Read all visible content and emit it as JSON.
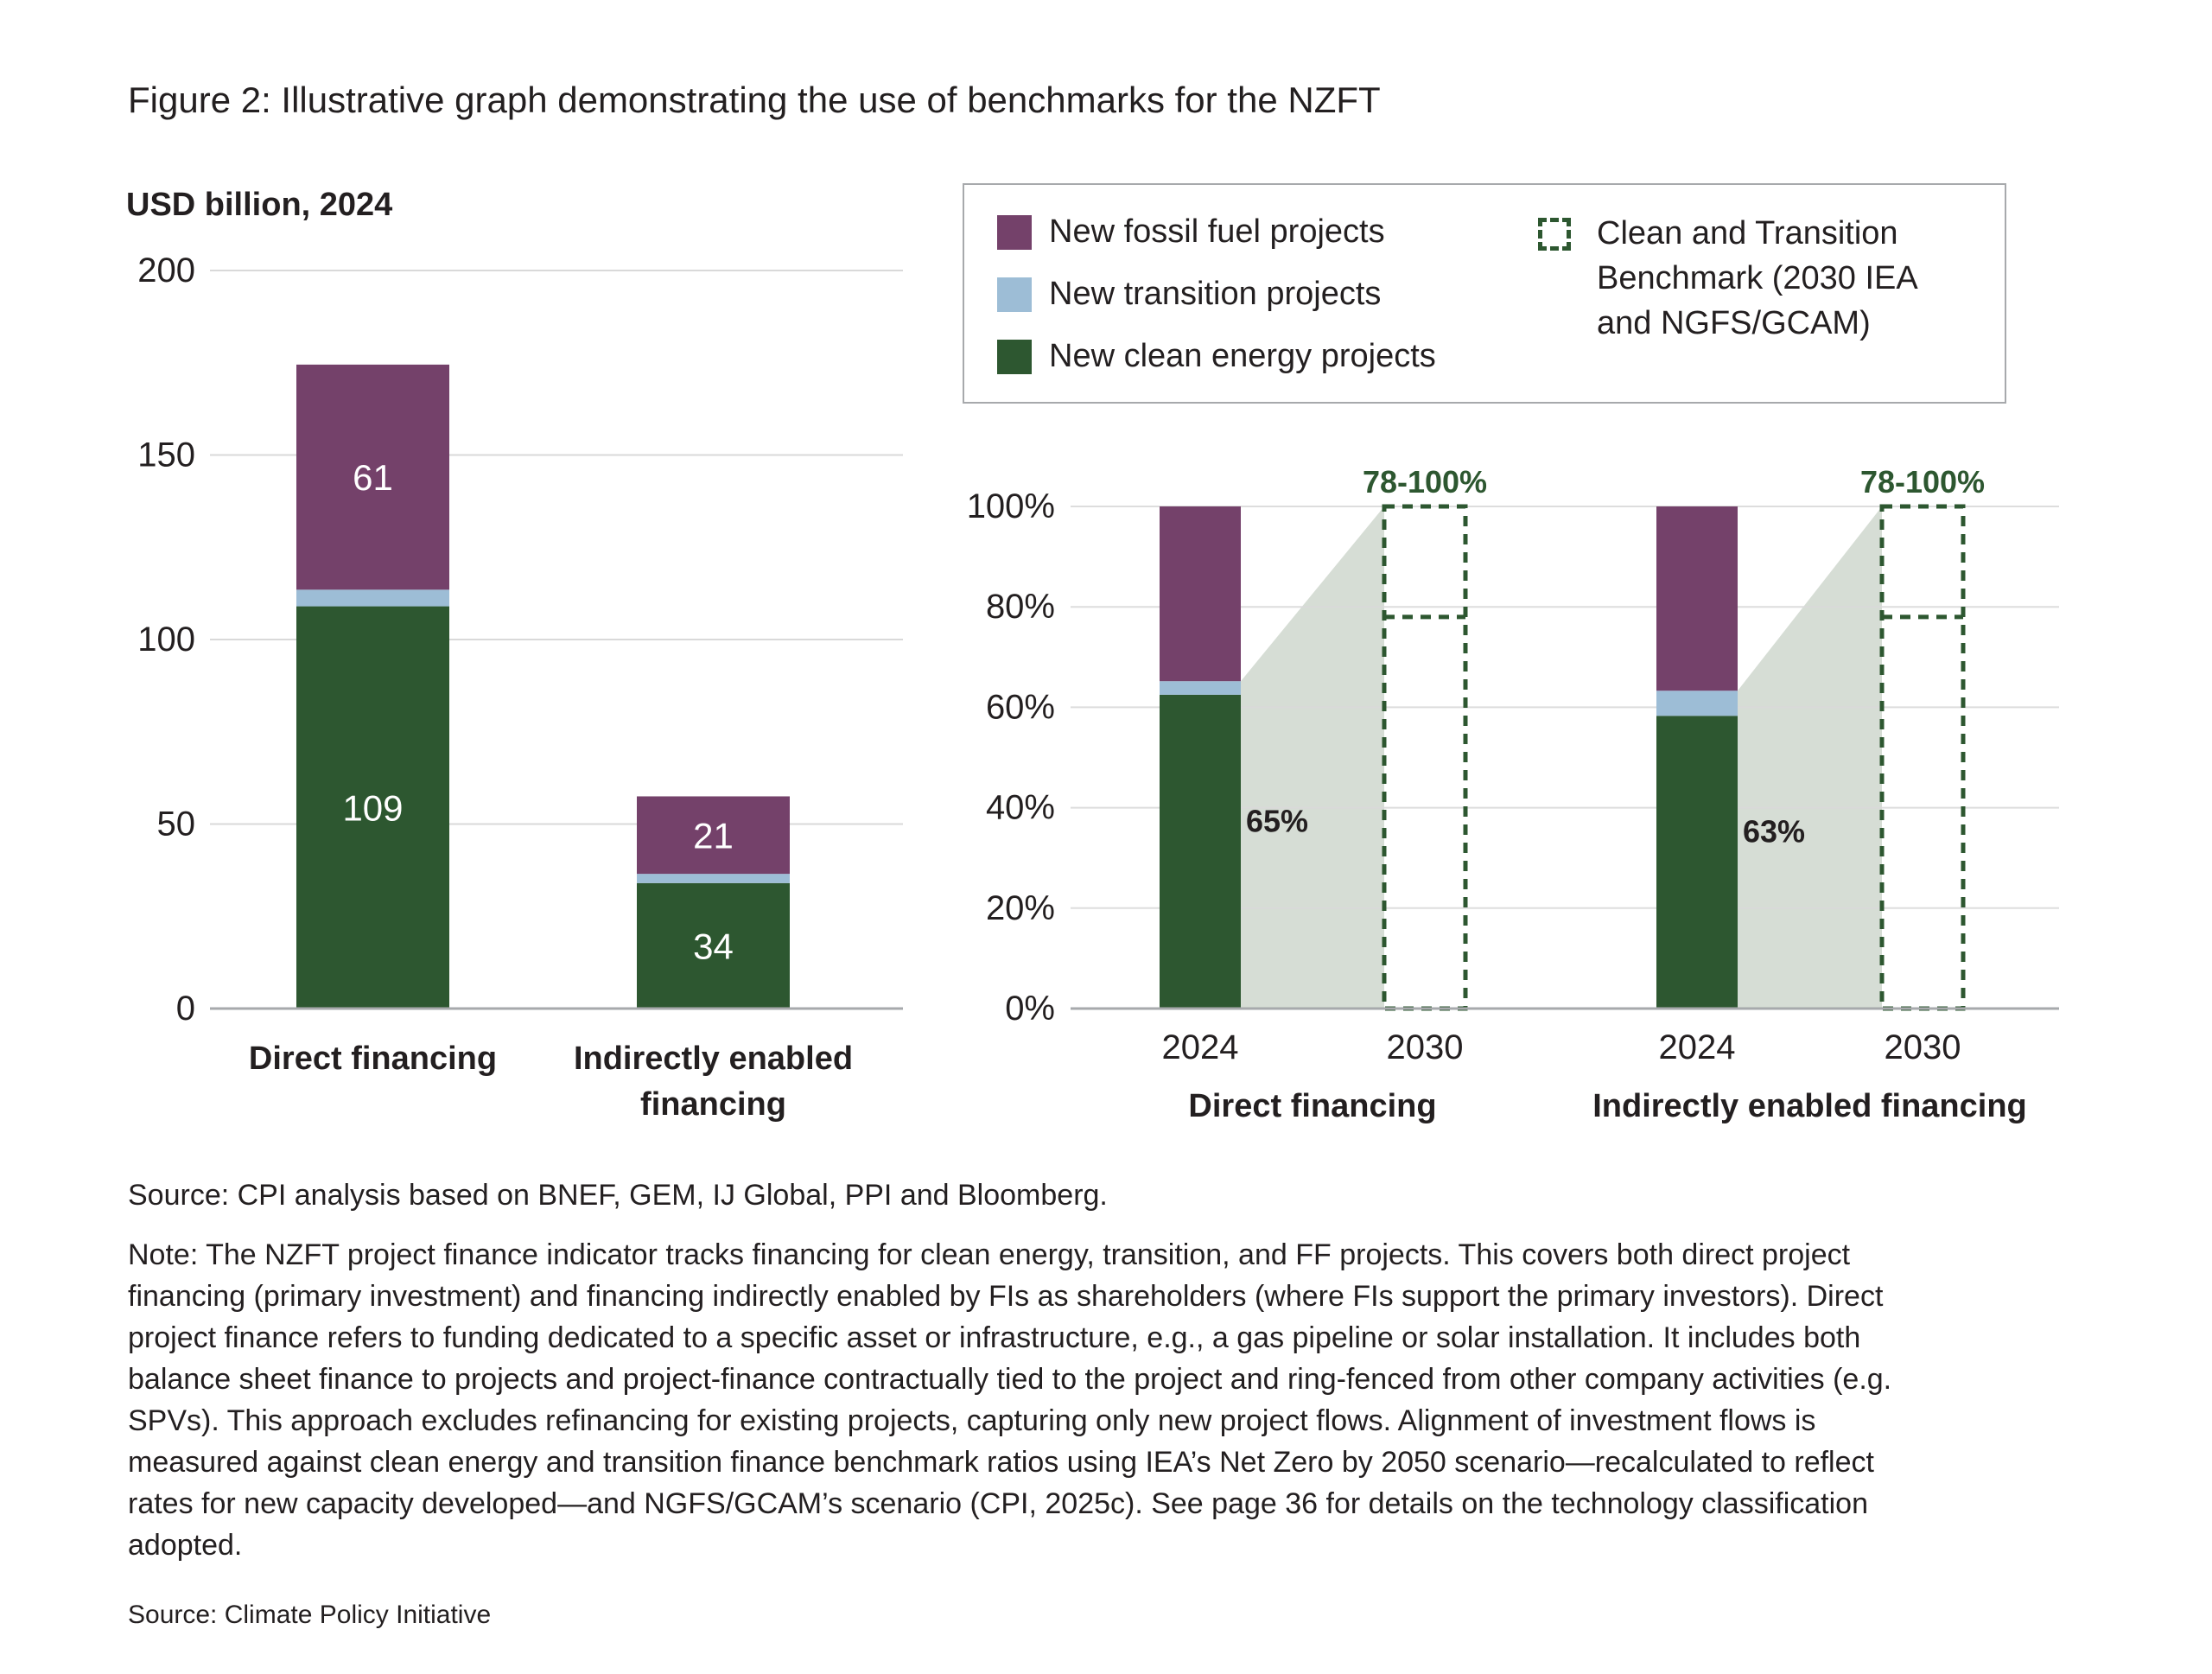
{
  "title": "Figure 2: Illustrative graph demonstrating the use of benchmarks for the NZFT",
  "colors": {
    "fossil": "#74416a",
    "transition": "#9dbdd6",
    "clean": "#2d5730",
    "shade": "#d6ddd5",
    "benchmark": "#2d5730",
    "grid": "#d9d9d9",
    "axis": "#a7a9ac"
  },
  "legend": {
    "items": [
      {
        "label": "New fossil fuel projects",
        "color": "#74416a"
      },
      {
        "label": "New transition projects",
        "color": "#9dbdd6"
      },
      {
        "label": "New clean energy projects",
        "color": "#2d5730"
      }
    ],
    "benchmark_lines": [
      "Clean and Transition",
      "Benchmark (2030 IEA",
      "and NGFS/GCAM)"
    ]
  },
  "chart_data": [
    {
      "type": "bar",
      "stacked": true,
      "title": "",
      "ylabel": "USD billion, 2024",
      "ylim": [
        0,
        200
      ],
      "yticks": [
        "0",
        "50",
        "100",
        "150",
        "200"
      ],
      "grid": true,
      "categories": [
        [
          "Direct financing"
        ],
        [
          "Indirectly enabled",
          "financing"
        ]
      ],
      "series": [
        {
          "name": "New clean energy projects",
          "values": [
            109,
            34
          ],
          "labels": [
            "109",
            "34"
          ]
        },
        {
          "name": "New transition projects",
          "values": [
            4.5,
            2.5
          ],
          "labels": [
            "",
            ""
          ]
        },
        {
          "name": "New fossil fuel projects",
          "values": [
            61,
            21
          ],
          "labels": [
            "61",
            "21"
          ]
        }
      ]
    },
    {
      "type": "bar",
      "stacked": true,
      "ylim": [
        0,
        100
      ],
      "yticks": [
        "0%",
        "20%",
        "40%",
        "60%",
        "80%",
        "100%"
      ],
      "grid": true,
      "groups": [
        {
          "name": "Direct financing",
          "years": [
            "2024",
            "2030"
          ],
          "clean": 62.5,
          "transition": 2.7,
          "fossil": 34.8,
          "clean_plus_transition_label": "65%",
          "benchmark_range": [
            78,
            100
          ],
          "benchmark_label": "78-100%"
        },
        {
          "name": "Indirectly enabled financing",
          "years": [
            "2024",
            "2030"
          ],
          "clean": 58.3,
          "transition": 5.0,
          "fossil": 36.7,
          "clean_plus_transition_label": "63%",
          "benchmark_range": [
            78,
            100
          ],
          "benchmark_label": "78-100%"
        }
      ]
    }
  ],
  "source": "Source: CPI analysis based on BNEF, GEM, IJ Global, PPI and Bloomberg.",
  "note_lines": [
    "Note: The NZFT project finance indicator tracks financing for clean energy, transition, and FF projects. This covers both direct project",
    "financing (primary investment) and financing indirectly enabled by FIs as shareholders (where FIs support the primary investors). Direct",
    "project finance refers to funding dedicated to a specific asset or infrastructure, e.g., a gas pipeline or solar installation. It includes both",
    "balance sheet finance to projects and project-finance contractually tied to the project and ring-fenced from other company activities (e.g.",
    "SPVs). This approach excludes refinancing for existing projects, capturing only new project flows. Alignment of investment flows is",
    "measured against clean energy and transition finance benchmark ratios using IEA’s Net Zero by 2050 scenario—recalculated to reflect",
    "rates for new capacity developed—and NGFS/GCAM’s scenario (CPI, 2025c). See page 36 for details on the technology classification",
    "adopted."
  ],
  "footer": "Source: Climate Policy Initiative"
}
